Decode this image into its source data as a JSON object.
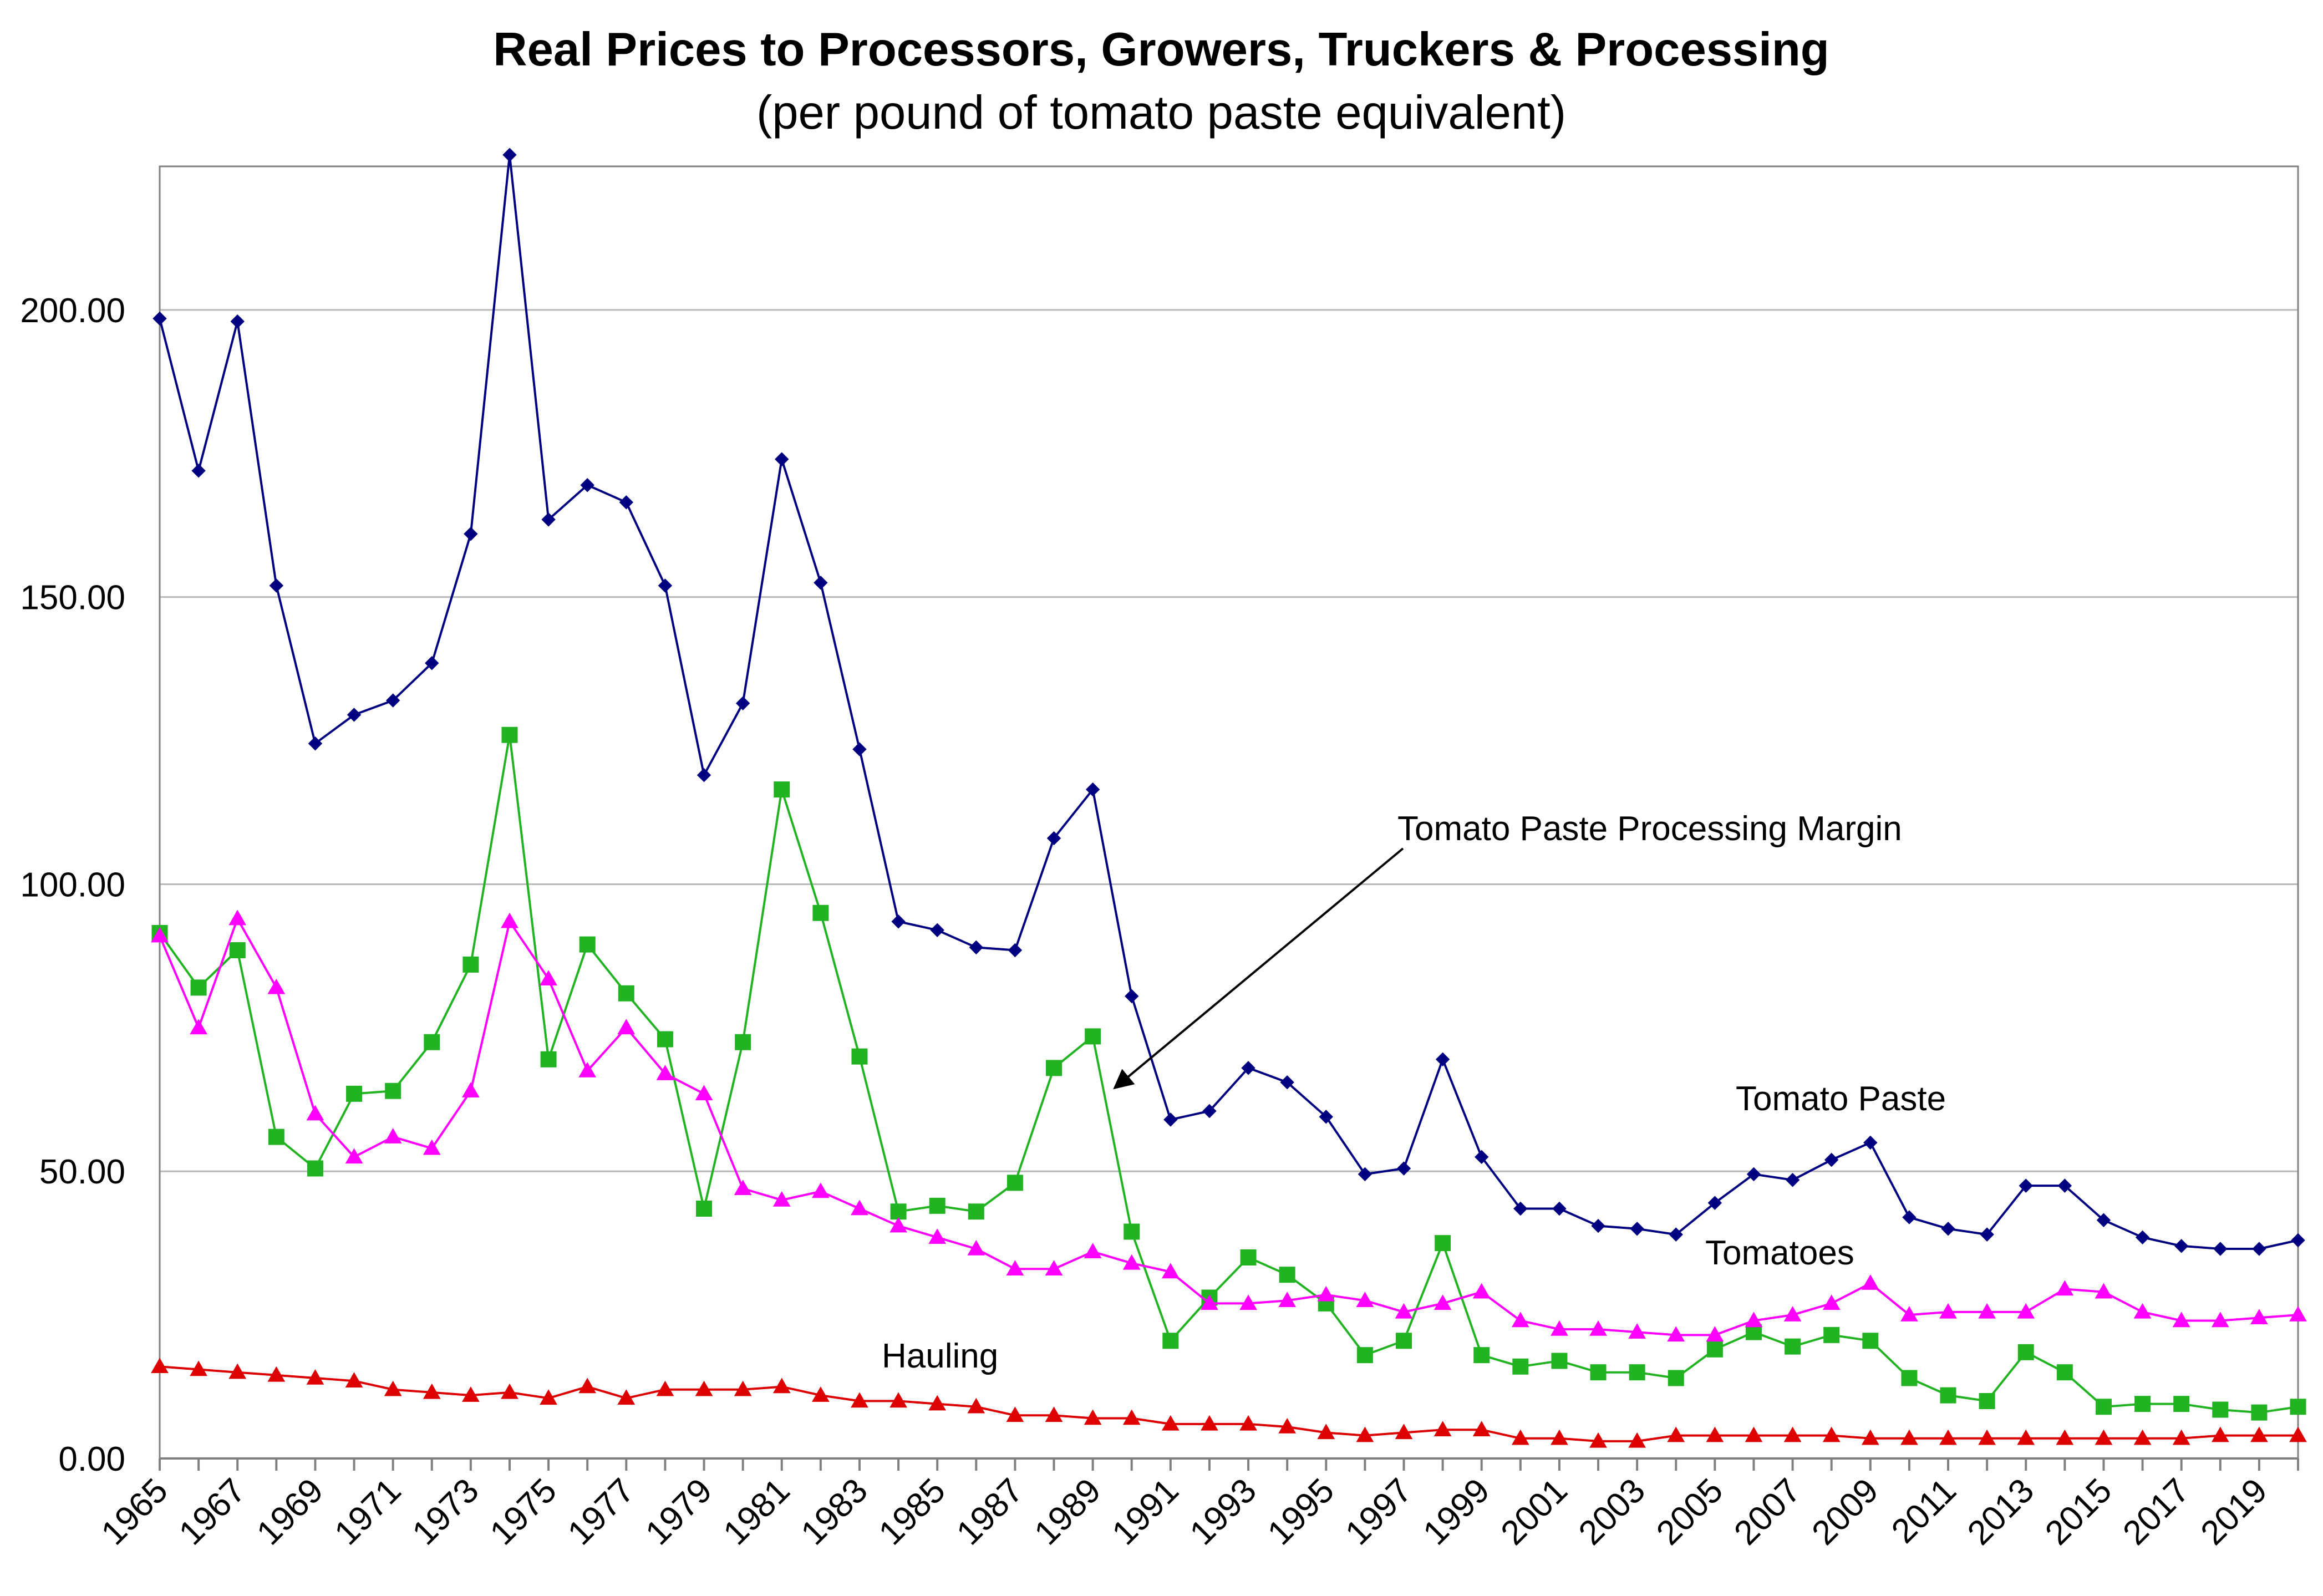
{
  "chart_data": {
    "type": "line",
    "title": "Real Prices to Processors, Growers, Truckers & Processing",
    "subtitle": "(per pound of tomato paste equivalent)",
    "xlabel": "",
    "ylabel": "",
    "ylim": [
      0,
      225
    ],
    "yticks": [
      0,
      50,
      100,
      150,
      200
    ],
    "ytick_labels": [
      "0.00",
      "50.00",
      "100.00",
      "150.00",
      "200.00"
    ],
    "x": [
      1965,
      1966,
      1967,
      1968,
      1969,
      1970,
      1971,
      1972,
      1973,
      1974,
      1975,
      1976,
      1977,
      1978,
      1979,
      1980,
      1981,
      1982,
      1983,
      1984,
      1985,
      1986,
      1987,
      1988,
      1989,
      1990,
      1991,
      1992,
      1993,
      1994,
      1995,
      1996,
      1997,
      1998,
      1999,
      2000,
      2001,
      2002,
      2003,
      2004,
      2005,
      2006,
      2007,
      2008,
      2009,
      2010,
      2011,
      2012,
      2013,
      2014,
      2015,
      2016,
      2017,
      2018,
      2019,
      2020
    ],
    "xtick_labels": [
      "1965",
      "1967",
      "1969",
      "1971",
      "1973",
      "1975",
      "1977",
      "1979",
      "1981",
      "1983",
      "1985",
      "1987",
      "1989",
      "1991",
      "1993",
      "1995",
      "1997",
      "1999",
      "2001",
      "2003",
      "2005",
      "2007",
      "2009",
      "2011",
      "2013",
      "2015",
      "2017",
      "2019"
    ],
    "grid": true,
    "series": [
      {
        "name": "Tomato Paste",
        "color": "#000080",
        "marker": "diamond",
        "values": [
          198.5,
          172,
          198,
          152,
          124.5,
          129.5,
          132,
          138.5,
          161,
          227,
          163.5,
          169.5,
          166.5,
          152,
          119,
          131.5,
          174,
          152.5,
          123.5,
          93.5,
          92,
          89,
          88.5,
          108,
          116.5,
          80.5,
          59,
          60.5,
          68,
          65.5,
          59.5,
          49.5,
          50.5,
          69.5,
          52.5,
          43.5,
          43.5,
          40.5,
          40,
          39,
          44.5,
          49.5,
          48.5,
          52,
          55,
          42,
          40,
          39,
          47.5,
          47.5,
          41.5,
          38.5,
          37,
          36.5,
          36.5,
          38
        ]
      },
      {
        "name": "Tomato Paste Processing Margin",
        "color": "#22b322",
        "marker": "square",
        "values": [
          91.5,
          82,
          88.5,
          56,
          50.5,
          63.5,
          64,
          72.5,
          86,
          126,
          69.5,
          89.5,
          81,
          73,
          43.5,
          72.5,
          116.5,
          95,
          70,
          43,
          44,
          43,
          48,
          68,
          73.5,
          39.5,
          20.5,
          28,
          35,
          32,
          27,
          18,
          20.5,
          37.5,
          18,
          16,
          17,
          15,
          15,
          14,
          19,
          22,
          19.5,
          21.5,
          20.5,
          14,
          11,
          10,
          18.5,
          15,
          9,
          9.5,
          9.5,
          8.5,
          8,
          9
        ]
      },
      {
        "name": "Tomatoes",
        "color": "#ff00ff",
        "marker": "triangle",
        "values": [
          91,
          75,
          94,
          82,
          60,
          52.5,
          56,
          54,
          64,
          93.5,
          83.5,
          67.5,
          75,
          67,
          63.5,
          47,
          45,
          46.5,
          43.5,
          40.5,
          38.5,
          36.5,
          33,
          33,
          36,
          34,
          32.5,
          27,
          27,
          27.5,
          28.5,
          27.5,
          25.5,
          27,
          29,
          24,
          22.5,
          22.5,
          22,
          21.5,
          21.5,
          24,
          25,
          27,
          30.5,
          25,
          25.5,
          25.5,
          25.5,
          29.5,
          29,
          25.5,
          24,
          24,
          24.5,
          25
        ]
      },
      {
        "name": "Hauling",
        "color": "#dd0000",
        "marker": "triangle",
        "values": [
          16,
          15.5,
          15,
          14.5,
          14,
          13.5,
          12,
          11.5,
          11,
          11.5,
          10.5,
          12.5,
          10.5,
          12,
          12,
          12,
          12.5,
          11,
          10,
          10,
          9.5,
          9,
          7.5,
          7.5,
          7,
          7,
          6,
          6,
          6,
          5.5,
          4.5,
          4,
          4.5,
          5,
          5,
          3.5,
          3.5,
          3,
          3,
          4,
          4,
          4,
          4,
          4,
          3.5,
          3.5,
          3.5,
          3.5,
          3.5,
          3.5,
          3.5,
          3.5,
          3.5,
          4,
          4,
          4
        ]
      }
    ],
    "annotations": {
      "processing_margin": "Tomato Paste Processing Margin",
      "tomato_paste": "Tomato Paste",
      "tomatoes": "Tomatoes",
      "hauling": "Hauling"
    }
  }
}
